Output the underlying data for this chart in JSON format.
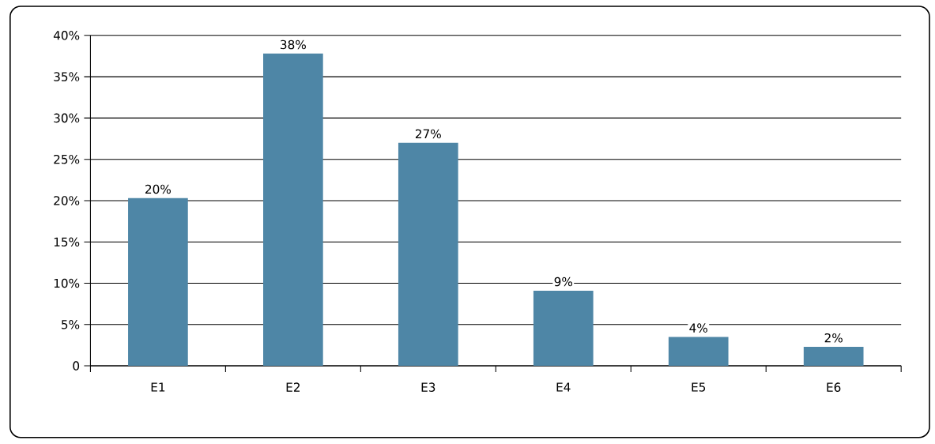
{
  "chart_data": {
    "type": "bar",
    "categories": [
      "E1",
      "E2",
      "E3",
      "E4",
      "E5",
      "E6"
    ],
    "values": [
      20.3,
      37.8,
      27.0,
      9.1,
      3.5,
      2.3
    ],
    "value_labels": [
      "20%",
      "38%",
      "27%",
      "9%",
      "4%",
      "2%"
    ],
    "color": "#4e86a6",
    "ylim": [
      0,
      40
    ],
    "yticks": [
      0,
      {
        "value": 5,
        "label": "5%"
      },
      {
        "value": 10,
        "label": "10%"
      },
      {
        "value": 15,
        "label": "15%"
      },
      {
        "value": 20,
        "label": "20%"
      },
      {
        "value": 25,
        "label": "25%"
      },
      {
        "value": 30,
        "label": "30%"
      },
      {
        "value": 35,
        "label": "35%"
      },
      {
        "value": 40,
        "label": "40%"
      }
    ],
    "grid": "y"
  }
}
